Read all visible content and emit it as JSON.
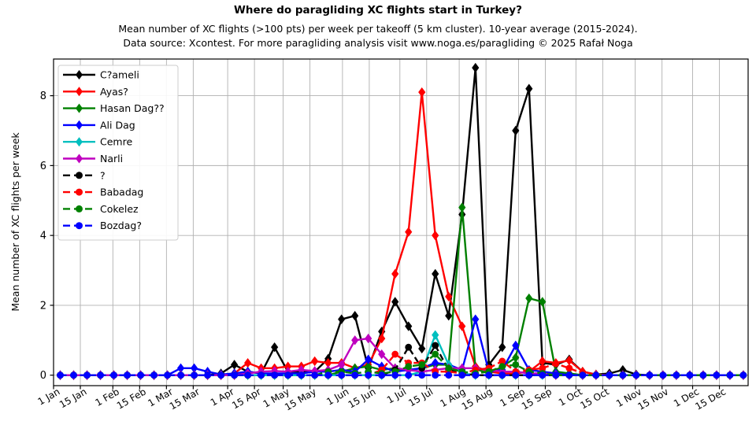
{
  "header": {
    "title": "Where do paragliding XC flights start in Turkey?",
    "subtitle1": "Mean number of XC flights (>100 pts) per week per takeoff (5 km cluster). 10-year average (2015-2024).",
    "subtitle2": "Data source: Xcontest. For more paragliding analysis visit www.noga.es/paragliding © 2025 Rafał Noga"
  },
  "chart_data": {
    "type": "line",
    "title": "Where do paragliding XC flights start in Turkey?",
    "ylabel": "Mean number of XC flights per week",
    "xlabel": "",
    "grid": true,
    "legend_position": "upper-left",
    "ylim": [
      -0.3,
      9.05
    ],
    "yticks": [
      0,
      2,
      4,
      6,
      8
    ],
    "xlim_days": 363,
    "x_description": "weekly data points, x = day-of-year (3.5 + 7*i), i = 0..51",
    "week_start_day": 3.5,
    "week_step_days": 7,
    "xticks": [
      {
        "label": "1 Jan",
        "day": 0
      },
      {
        "label": "15 Jan",
        "day": 14
      },
      {
        "label": "1 Feb",
        "day": 31
      },
      {
        "label": "15 Feb",
        "day": 45
      },
      {
        "label": "1 Mar",
        "day": 59
      },
      {
        "label": "15 Mar",
        "day": 73
      },
      {
        "label": "1 Apr",
        "day": 91
      },
      {
        "label": "15 Apr",
        "day": 105
      },
      {
        "label": "1 May",
        "day": 120
      },
      {
        "label": "15 May",
        "day": 134
      },
      {
        "label": "1 Jun",
        "day": 151
      },
      {
        "label": "15 Jun",
        "day": 165
      },
      {
        "label": "1 Jul",
        "day": 181
      },
      {
        "label": "15 Jul",
        "day": 195
      },
      {
        "label": "1 Aug",
        "day": 212
      },
      {
        "label": "15 Aug",
        "day": 226
      },
      {
        "label": "1 Sep",
        "day": 243
      },
      {
        "label": "15 Sep",
        "day": 257
      },
      {
        "label": "1 Oct",
        "day": 273
      },
      {
        "label": "15 Oct",
        "day": 287
      },
      {
        "label": "1 Nov",
        "day": 304
      },
      {
        "label": "15 Nov",
        "day": 318
      },
      {
        "label": "1 Dec",
        "day": 334
      },
      {
        "label": "15 Dec",
        "day": 348
      }
    ],
    "colors": {
      "black": "#000000",
      "red": "#ff0000",
      "green": "#008000",
      "blue": "#0000ff",
      "cyan": "#00bfbf",
      "magenta": "#bf00bf",
      "grid": "#b0b0b0",
      "spine": "#000000",
      "legend_border": "#cccccc"
    },
    "series": [
      {
        "name": "C?ameli",
        "color": "#000000",
        "style": "solid",
        "marker": "diamond",
        "values": [
          0,
          0,
          0,
          0,
          0,
          0,
          0,
          0,
          0,
          0,
          0,
          0,
          0.05,
          0.3,
          0.1,
          0.05,
          0.8,
          0.1,
          0.1,
          0.1,
          0.47,
          1.6,
          1.7,
          0.2,
          1.25,
          2.1,
          1.4,
          0.76,
          2.9,
          1.7,
          4.6,
          8.8,
          0.3,
          0.8,
          7,
          8.2,
          0.35,
          0.3,
          0.45,
          0.1,
          0.02,
          0.05,
          0.15,
          0.02,
          0,
          0,
          0,
          0,
          0,
          0,
          0,
          0
        ]
      },
      {
        "name": "Ayas?",
        "color": "#ff0000",
        "style": "solid",
        "marker": "diamond",
        "values": [
          0,
          0,
          0,
          0,
          0,
          0,
          0,
          0,
          0,
          0,
          0,
          0,
          0,
          0.05,
          0.35,
          0.2,
          0.2,
          0.25,
          0.25,
          0.4,
          0.35,
          0.35,
          0.2,
          0.3,
          1.05,
          2.9,
          4.1,
          8.1,
          4,
          2.25,
          1.4,
          0.25,
          0.1,
          0.05,
          0.05,
          0.1,
          0.4,
          0.35,
          0.42,
          0.1,
          0.02,
          0,
          0,
          0,
          0,
          0,
          0,
          0,
          0,
          0,
          0,
          0
        ]
      },
      {
        "name": "Hasan Dag??",
        "color": "#008000",
        "style": "solid",
        "marker": "diamond",
        "values": [
          0,
          0,
          0,
          0,
          0,
          0,
          0,
          0,
          0,
          0,
          0,
          0,
          0,
          0,
          0,
          0,
          0,
          0,
          0,
          0,
          0,
          0.1,
          0.2,
          0.25,
          0.15,
          0.2,
          0.15,
          0.2,
          0.3,
          0.3,
          4.8,
          0.18,
          0.05,
          0.25,
          0.5,
          2.2,
          2.1,
          0.1,
          0.05,
          0,
          0,
          0,
          0,
          0,
          0,
          0,
          0,
          0,
          0,
          0,
          0,
          0
        ]
      },
      {
        "name": "Ali Dag",
        "color": "#0000ff",
        "style": "solid",
        "marker": "diamond",
        "values": [
          0,
          0,
          0,
          0,
          0,
          0,
          0,
          0,
          0,
          0.2,
          0.2,
          0.1,
          0.02,
          0.05,
          0.1,
          0.05,
          0.05,
          0.05,
          0.05,
          0.1,
          0.1,
          0.15,
          0.1,
          0.45,
          0.25,
          0.1,
          0.15,
          0.2,
          0.35,
          0.3,
          0.15,
          1.6,
          0.1,
          0.15,
          0.85,
          0.15,
          0.1,
          0.05,
          0,
          0,
          0,
          0,
          0,
          0,
          0,
          0,
          0,
          0,
          0,
          0,
          0,
          0
        ]
      },
      {
        "name": "Cemre",
        "color": "#00bfbf",
        "style": "solid",
        "marker": "diamond",
        "values": [
          0,
          0,
          0,
          0,
          0,
          0,
          0,
          0,
          0,
          0,
          0,
          0,
          0,
          0,
          0,
          0,
          0,
          0,
          0,
          0,
          0,
          0,
          0,
          0,
          0,
          0,
          0,
          0.1,
          1.15,
          0.3,
          0.05,
          0,
          0,
          0,
          0,
          0,
          0,
          0,
          0,
          0,
          0,
          0,
          0,
          0,
          0,
          0,
          0,
          0,
          0,
          0,
          0,
          0
        ]
      },
      {
        "name": "Narli",
        "color": "#bf00bf",
        "style": "solid",
        "marker": "diamond",
        "values": [
          0,
          0,
          0,
          0,
          0,
          0,
          0,
          0,
          0,
          0,
          0,
          0,
          0,
          0,
          0.05,
          0.1,
          0.12,
          0.1,
          0.15,
          0.12,
          0.15,
          0.3,
          1,
          1.05,
          0.6,
          0.2,
          0.15,
          0.1,
          0.15,
          0.2,
          0.2,
          0.2,
          0.15,
          0.1,
          0.1,
          0.05,
          0.05,
          0,
          0,
          0,
          0,
          0,
          0,
          0,
          0,
          0,
          0,
          0,
          0,
          0,
          0,
          0
        ]
      },
      {
        "name": "?",
        "color": "#000000",
        "style": "dashed",
        "marker": "circle",
        "values": [
          0,
          0,
          0,
          0,
          0,
          0,
          0,
          0,
          0,
          0,
          0,
          0,
          0,
          0,
          0,
          0,
          0,
          0,
          0,
          0,
          0,
          0,
          0,
          0,
          0,
          0.15,
          0.8,
          0.2,
          0.85,
          0.15,
          0.05,
          0,
          0,
          0,
          0,
          0,
          0,
          0,
          0,
          0,
          0,
          0,
          0,
          0,
          0,
          0,
          0,
          0,
          0,
          0,
          0,
          0
        ]
      },
      {
        "name": "Babadag",
        "color": "#ff0000",
        "style": "dashed",
        "marker": "circle",
        "values": [
          0,
          0,
          0,
          0,
          0,
          0,
          0,
          0,
          0,
          0,
          0,
          0,
          0,
          0,
          0,
          0,
          0,
          0,
          0,
          0,
          0,
          0,
          0,
          0,
          0.15,
          0.6,
          0.35,
          0.35,
          0.1,
          0.1,
          0.05,
          0.15,
          0.2,
          0.4,
          0.1,
          0.15,
          0.2,
          0.33,
          0.2,
          0.05,
          0,
          0,
          0,
          0,
          0,
          0,
          0,
          0,
          0,
          0,
          0,
          0
        ]
      },
      {
        "name": "Cokelez",
        "color": "#008000",
        "style": "dashed",
        "marker": "circle",
        "values": [
          0,
          0,
          0,
          0,
          0,
          0,
          0,
          0,
          0,
          0,
          0,
          0,
          0,
          0,
          0,
          0,
          0,
          0,
          0,
          0,
          0.1,
          0.1,
          0.05,
          0.1,
          0.05,
          0.1,
          0.25,
          0.3,
          0.6,
          0.2,
          0.1,
          0.05,
          0.1,
          0.25,
          0.3,
          0.1,
          0.05,
          0,
          0,
          0,
          0,
          0,
          0,
          0,
          0,
          0,
          0,
          0,
          0,
          0,
          0,
          0
        ]
      },
      {
        "name": "Bozdag?",
        "color": "#0000ff",
        "style": "dashed",
        "marker": "circle",
        "values": [
          0,
          0,
          0,
          0,
          0,
          0,
          0,
          0,
          0,
          0,
          0,
          0,
          0,
          0,
          0,
          0,
          0,
          0,
          0,
          0,
          0,
          0,
          0,
          0,
          0,
          0,
          0,
          0,
          0,
          0,
          0,
          0,
          0,
          0,
          0,
          0,
          0,
          0,
          0,
          0,
          0,
          0,
          0,
          0,
          0,
          0,
          0,
          0,
          0,
          0,
          0,
          0
        ]
      }
    ],
    "ytick_labels": [
      "0",
      "2",
      "4",
      "6",
      "8"
    ]
  }
}
